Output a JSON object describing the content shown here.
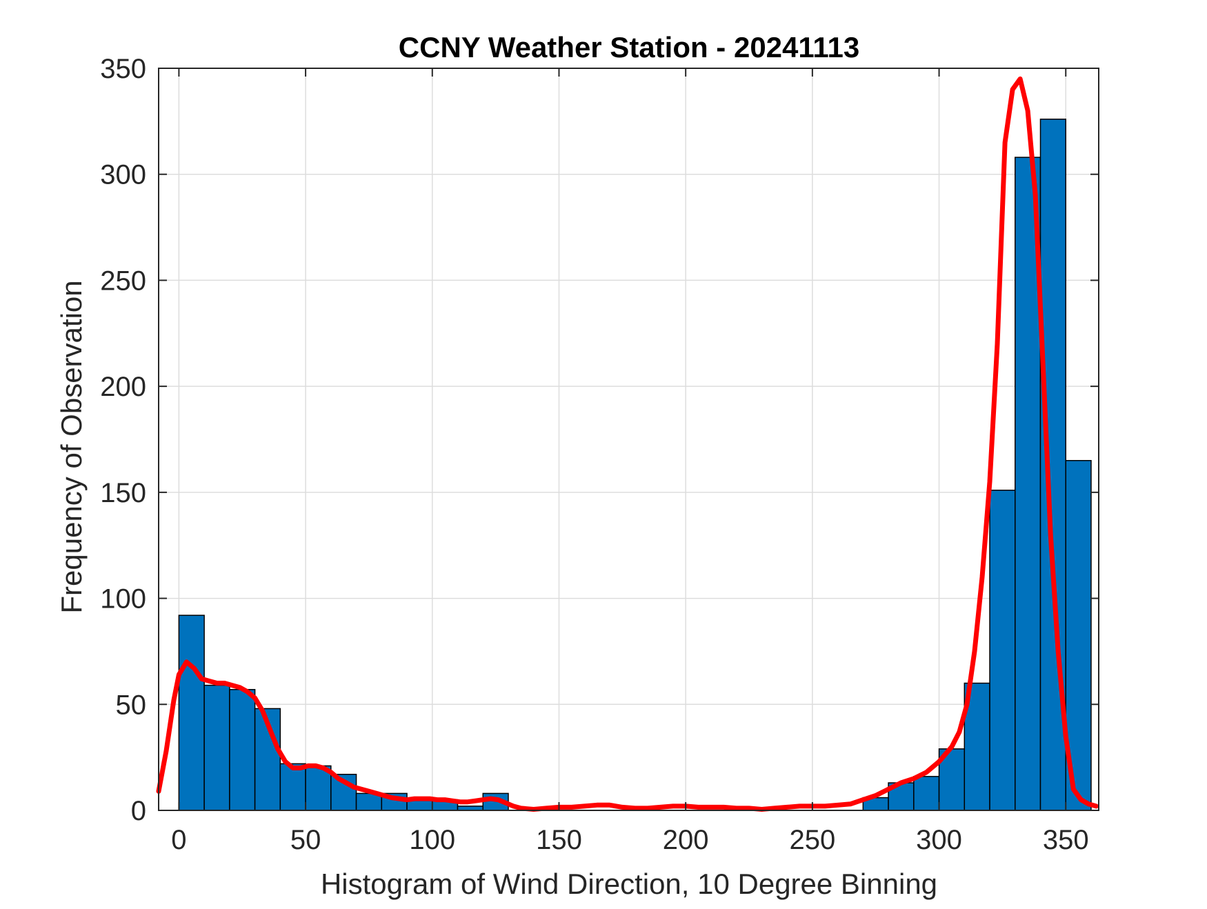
{
  "chart_data": {
    "type": "bar",
    "title": "CCNY Weather Station - 20241113",
    "xlabel": "Histogram of Wind Direction, 10 Degree Binning",
    "ylabel": "Frequency of Observation",
    "xlim": [
      -8,
      363
    ],
    "ylim": [
      0,
      350
    ],
    "xticks": [
      0,
      50,
      100,
      150,
      200,
      250,
      300,
      350
    ],
    "yticks": [
      0,
      50,
      100,
      150,
      200,
      250,
      300,
      350
    ],
    "grid": true,
    "bin_width": 10,
    "bin_edges": [
      0,
      10,
      20,
      30,
      40,
      50,
      60,
      70,
      80,
      90,
      100,
      110,
      120,
      130,
      140,
      150,
      160,
      170,
      180,
      190,
      200,
      210,
      220,
      230,
      240,
      250,
      260,
      270,
      280,
      290,
      300,
      310,
      320,
      330,
      340,
      350,
      360
    ],
    "values": [
      92,
      59,
      57,
      48,
      22,
      21,
      17,
      8,
      8,
      5,
      5,
      2,
      8,
      0,
      0,
      0,
      0,
      0,
      0,
      0,
      0,
      0,
      0,
      0,
      0,
      0,
      0,
      6,
      13,
      16,
      29,
      60,
      151,
      308,
      326,
      165
    ],
    "colors": {
      "bar": "#0072BD",
      "bar_edge": "#000000",
      "curve": "#FF0000",
      "grid": "#DDDDDD"
    },
    "curve": {
      "x": [
        -8,
        -5,
        -2,
        0,
        3,
        6,
        9,
        12,
        15,
        18,
        21,
        24,
        27,
        30,
        33,
        36,
        39,
        42,
        45,
        48,
        51,
        54,
        57,
        60,
        63,
        66,
        69,
        72,
        75,
        78,
        81,
        84,
        87,
        90,
        93,
        96,
        99,
        102,
        105,
        108,
        111,
        114,
        117,
        120,
        123,
        126,
        129,
        132,
        135,
        140,
        145,
        150,
        155,
        160,
        165,
        170,
        175,
        180,
        185,
        190,
        195,
        200,
        205,
        210,
        215,
        220,
        225,
        230,
        235,
        240,
        245,
        250,
        255,
        260,
        265,
        270,
        275,
        280,
        285,
        290,
        295,
        300,
        305,
        308,
        311,
        314,
        317,
        320,
        323,
        326,
        329,
        332,
        335,
        338,
        341,
        344,
        347,
        350,
        353,
        356,
        359,
        362
      ],
      "y": [
        9,
        28,
        52,
        64,
        70,
        67,
        62,
        61,
        60,
        60,
        59,
        58,
        56,
        53,
        47,
        38,
        29,
        23,
        20,
        20,
        21,
        21,
        20,
        18,
        15,
        13,
        11,
        10,
        9,
        8,
        7,
        6,
        5.5,
        5,
        5.5,
        5.5,
        5.5,
        5,
        5,
        4.5,
        4,
        4,
        4.5,
        5,
        5.5,
        5,
        3.5,
        2,
        1,
        0.5,
        1,
        1.5,
        1.5,
        2,
        2.5,
        2.5,
        1.5,
        1,
        1,
        1.5,
        2,
        2,
        1.5,
        1.5,
        1.5,
        1,
        1,
        0.5,
        1,
        1.5,
        2,
        2,
        2,
        2.5,
        3,
        5,
        7,
        10,
        13,
        15,
        18,
        23,
        30,
        37,
        50,
        75,
        110,
        155,
        220,
        315,
        340,
        345,
        330,
        290,
        210,
        130,
        75,
        35,
        10,
        5,
        3,
        2
      ]
    }
  }
}
